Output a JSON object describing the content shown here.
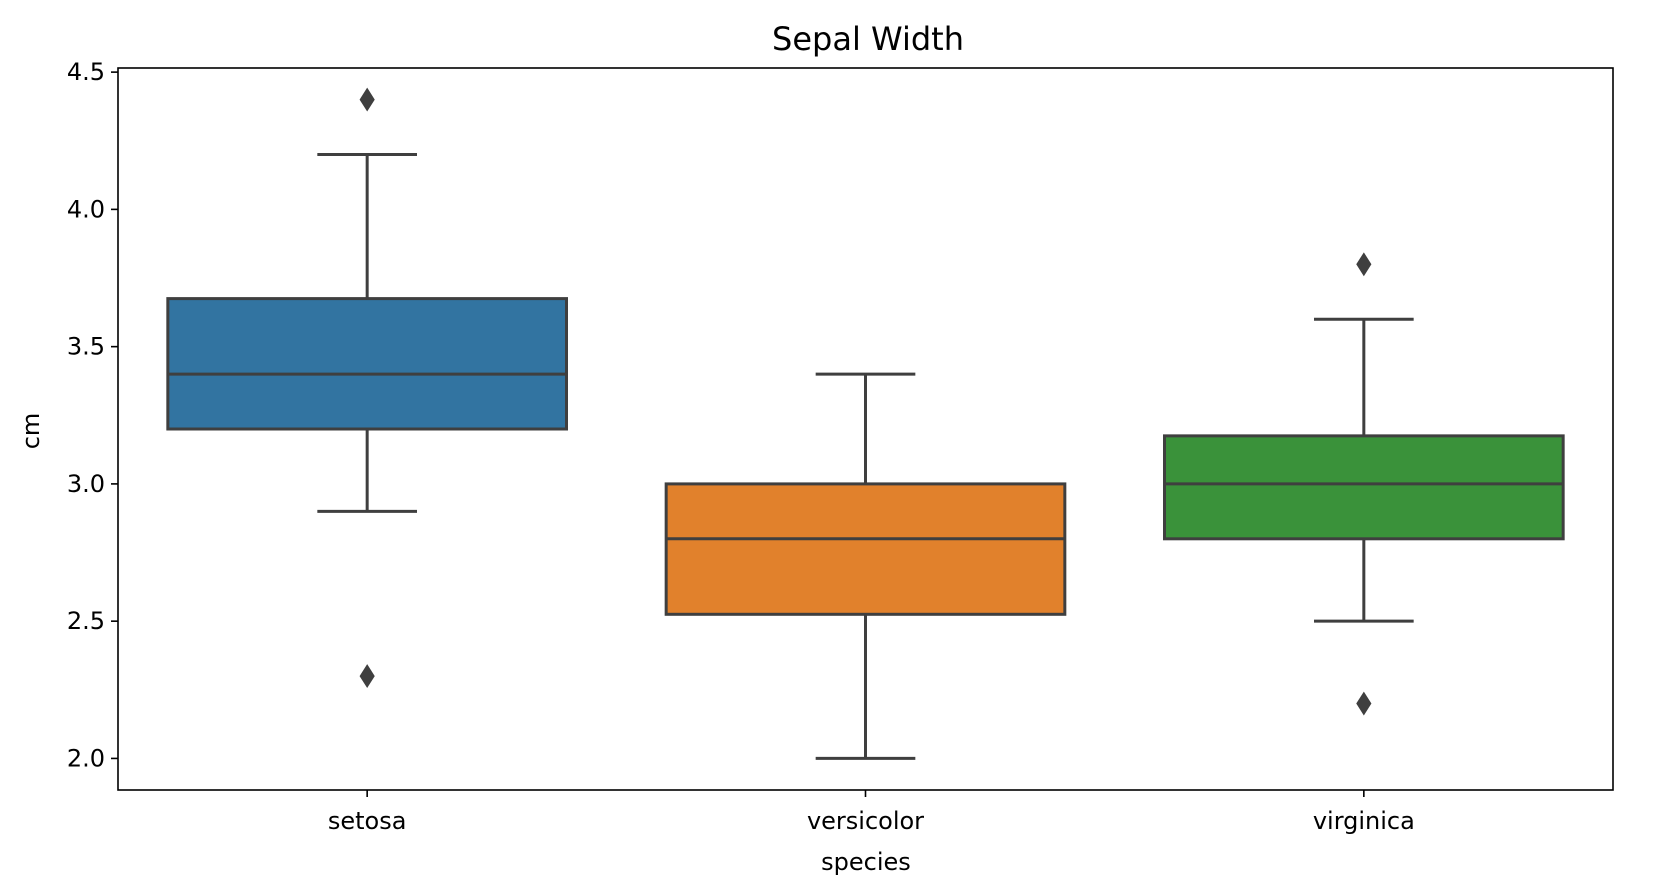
{
  "chart_data": {
    "type": "box",
    "title": "Sepal Width",
    "xlabel": "species",
    "ylabel": "cm",
    "ylim": [
      1.885,
      4.515
    ],
    "yticks": [
      "2.0",
      "2.5",
      "3.0",
      "3.5",
      "4.0",
      "4.5"
    ],
    "ytick_values": [
      2.0,
      2.5,
      3.0,
      3.5,
      4.0,
      4.5
    ],
    "grid": false,
    "categories": [
      "setosa",
      "versicolor",
      "virginica"
    ],
    "boxes": [
      {
        "category": "setosa",
        "whisker_low": 2.9,
        "q1": 3.2,
        "median": 3.4,
        "q3": 3.675,
        "whisker_high": 4.2,
        "outliers": [
          4.4,
          2.3
        ],
        "color": "#3274a1"
      },
      {
        "category": "versicolor",
        "whisker_low": 2.0,
        "q1": 2.525,
        "median": 2.8,
        "q3": 3.0,
        "whisker_high": 3.4,
        "outliers": [],
        "color": "#e1812c"
      },
      {
        "category": "virginica",
        "whisker_low": 2.5,
        "q1": 2.8,
        "median": 3.0,
        "q3": 3.175,
        "whisker_high": 3.6,
        "outliers": [
          3.8,
          2.2
        ],
        "color": "#3a923a"
      }
    ],
    "line_color": "#3f3f3f"
  }
}
